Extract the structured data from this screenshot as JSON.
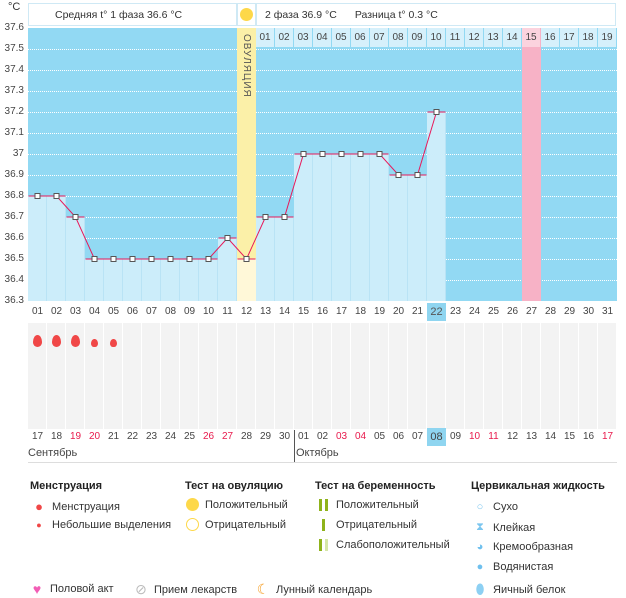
{
  "header": {
    "unit": "°C",
    "phase1": "Средняя t° 1 фаза 36.6 °C",
    "phase2": "2 фаза 36.9 °C",
    "diff": "Разница t° 0.3 °C",
    "ovulation_label": "ОВУЛЯЦИЯ"
  },
  "colors": {
    "dark": "#92d9f3",
    "light": "#ccedfa",
    "ovulation": "#fbf0a8",
    "line": "#e8195a",
    "pink": "#f7b2c6",
    "accent_day": "#8fd5f0",
    "grey": "#f3f3f3"
  },
  "chart_data": {
    "type": "line",
    "title": "",
    "xlabel": "",
    "ylabel": "°C",
    "ylim": [
      36.3,
      37.6
    ],
    "y_ticks": [
      "37.6",
      "37.5",
      "37.4",
      "37.3",
      "37.2",
      "37.1",
      "37",
      "36.9",
      "36.8",
      "36.7",
      "36.6",
      "36.5",
      "36.4",
      "36.3"
    ],
    "x": [
      "01",
      "02",
      "03",
      "04",
      "05",
      "06",
      "07",
      "08",
      "09",
      "10",
      "11",
      "12",
      "13",
      "14",
      "15",
      "16",
      "17",
      "18",
      "19",
      "20",
      "21",
      "22",
      "23",
      "24",
      "25",
      "26",
      "27",
      "28",
      "29",
      "30",
      "31"
    ],
    "values": [
      36.8,
      36.8,
      36.7,
      36.5,
      36.5,
      36.5,
      36.5,
      36.5,
      36.5,
      36.5,
      36.6,
      36.5,
      36.7,
      36.7,
      37.0,
      37.0,
      37.0,
      37.0,
      37.0,
      36.9,
      36.9,
      37.2,
      null,
      null,
      null,
      null,
      null,
      null,
      null,
      null,
      null
    ],
    "ovulation_day": 12,
    "current_day": 22,
    "highlight_day": 27,
    "phase2_days": [
      "01",
      "02",
      "03",
      "04",
      "05",
      "06",
      "07",
      "08",
      "09",
      "10",
      "11",
      "12",
      "13",
      "14",
      "15",
      "16",
      "17",
      "18",
      "19"
    ],
    "menstruation": [
      "heavy",
      "heavy",
      "heavy",
      "light",
      "light"
    ]
  },
  "calendar": {
    "dates": [
      "17",
      "18",
      "19",
      "20",
      "21",
      "22",
      "23",
      "24",
      "25",
      "26",
      "27",
      "28",
      "29",
      "30",
      "01",
      "02",
      "03",
      "04",
      "05",
      "06",
      "07",
      "08",
      "09",
      "10",
      "11",
      "12",
      "13",
      "14",
      "15",
      "16",
      "17"
    ],
    "weekend": [
      2,
      3,
      9,
      10,
      16,
      17,
      23,
      24,
      30
    ],
    "today_index": 21,
    "months": [
      "Сентябрь",
      "Октябрь"
    ]
  },
  "legend": {
    "menstruation": {
      "title": "Менструация",
      "items": [
        "Менструация",
        "Небольшие выделения"
      ]
    },
    "ovulation_test": {
      "title": "Тест на овуляцию",
      "items": [
        "Положительный",
        "Отрицательный"
      ]
    },
    "pregnancy_test": {
      "title": "Тест на беременность",
      "items": [
        "Положительный",
        "Отрицательный",
        "Слабоположительный"
      ]
    },
    "cervical": {
      "title": "Цервикальная жидкость",
      "items": [
        "Сухо",
        "Клейкая",
        "Кремообразная",
        "Водянистая",
        "Яичный белок"
      ]
    },
    "bottom": [
      "Половой акт",
      "Прием лекарств",
      "Лунный календарь"
    ]
  }
}
